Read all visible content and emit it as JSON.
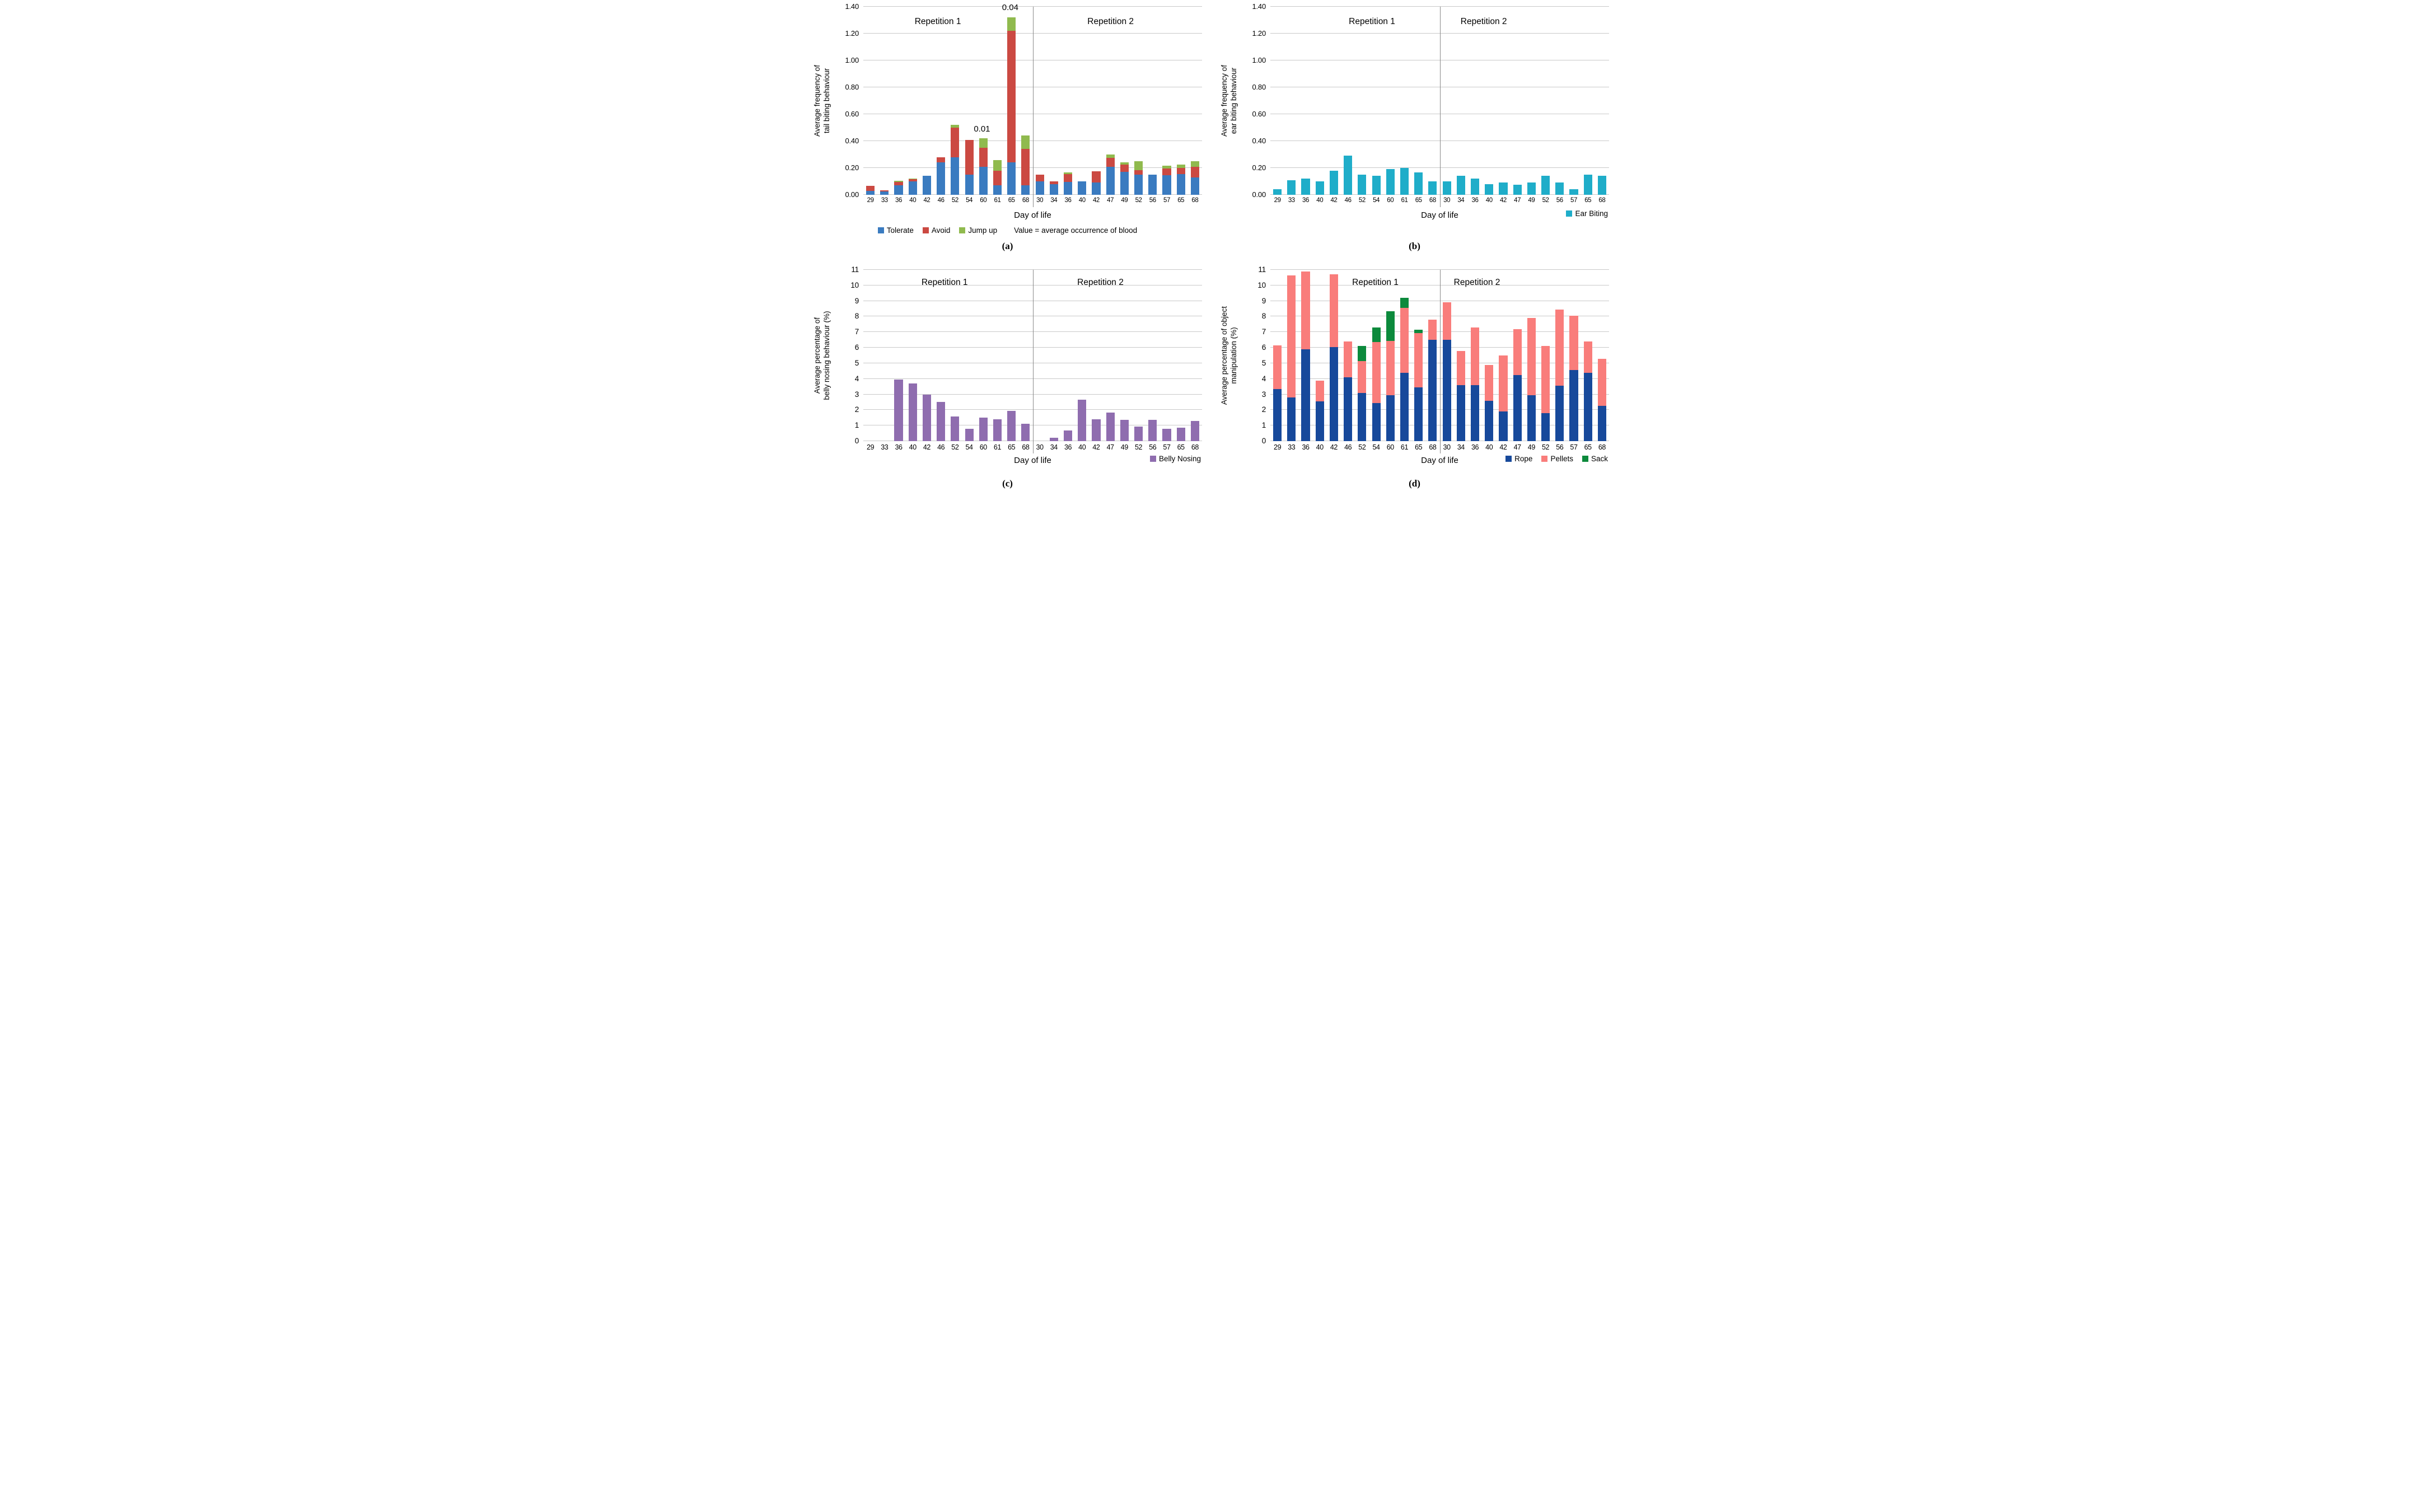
{
  "figure": {
    "x_axis_title": "Day of life",
    "day_categories": [
      "29",
      "33",
      "36",
      "40",
      "42",
      "46",
      "52",
      "54",
      "60",
      "61",
      "65",
      "68",
      "30",
      "34",
      "36",
      "40",
      "42",
      "47",
      "49",
      "52",
      "56",
      "57",
      "65",
      "68"
    ],
    "region_labels": [
      "Repetition 1",
      "Repetition 2"
    ]
  },
  "chart_data": [
    {
      "id": "a",
      "type": "bar",
      "stacked": true,
      "caption": "(a)",
      "ylabel": "Average frequency of\ntail biting behaviour",
      "xlabel": "Day of life",
      "ylim": [
        0,
        1.4
      ],
      "grid": true,
      "ytick_values": [
        0,
        0.2,
        0.4,
        0.6,
        0.8,
        1.0,
        1.2,
        1.4
      ],
      "ytick_labels": [
        "0.00",
        "0.20",
        "0.40",
        "0.60",
        "0.80",
        "1.00",
        "1.20",
        "1.40"
      ],
      "categories": [
        "29",
        "33",
        "36",
        "40",
        "42",
        "46",
        "52",
        "54",
        "60",
        "61",
        "65",
        "68",
        "30",
        "34",
        "36",
        "40",
        "42",
        "47",
        "49",
        "52",
        "56",
        "57",
        "65",
        "68"
      ],
      "region_labels": [
        "Repetition 1",
        "Repetition 2"
      ],
      "region_label_x": [
        22,
        73
      ],
      "legend_position": "below-center",
      "legend_note": "Value = average occurrence of blood",
      "annotations": [
        {
          "text": "0.01",
          "day": "60",
          "day_index": 8,
          "y": 0.455
        },
        {
          "text": "0.04",
          "day": "65",
          "day_index": 10,
          "y": 1.36
        }
      ],
      "series": [
        {
          "name": "Tolerate",
          "color": "#3A7BC0",
          "values": [
            0.03,
            0.025,
            0.07,
            0.1,
            0.14,
            0.24,
            0.28,
            0.15,
            0.21,
            0.07,
            0.24,
            0.07,
            0.1,
            0.08,
            0.095,
            0.1,
            0.09,
            0.21,
            0.17,
            0.15,
            0.15,
            0.145,
            0.155,
            0.13
          ]
        },
        {
          "name": "Avoid",
          "color": "#CB4942",
          "values": [
            0.035,
            0.01,
            0.025,
            0.015,
            0,
            0.04,
            0.22,
            0.26,
            0.14,
            0.11,
            0.98,
            0.27,
            0.05,
            0.02,
            0.06,
            0,
            0.085,
            0.065,
            0.055,
            0.035,
            0,
            0.05,
            0.045,
            0.08
          ]
        },
        {
          "name": "Jump up",
          "color": "#90BA4E",
          "values": [
            0,
            0,
            0.01,
            0.005,
            0,
            0,
            0.02,
            0,
            0.07,
            0.08,
            0.1,
            0.1,
            0,
            0,
            0.01,
            0,
            0,
            0.025,
            0.015,
            0.065,
            0,
            0.02,
            0.025,
            0.04
          ]
        }
      ]
    },
    {
      "id": "b",
      "type": "bar",
      "stacked": false,
      "caption": "(b)",
      "ylabel": "Average frequency of\near biting behaviour",
      "xlabel": "Day of life",
      "ylim": [
        0,
        1.4
      ],
      "grid": true,
      "ytick_values": [
        0,
        0.2,
        0.4,
        0.6,
        0.8,
        1.0,
        1.2,
        1.4
      ],
      "ytick_labels": [
        "0.00",
        "0.20",
        "0.40",
        "0.60",
        "0.80",
        "1.00",
        "1.20",
        "1.40"
      ],
      "categories": [
        "29",
        "33",
        "36",
        "40",
        "42",
        "46",
        "52",
        "54",
        "60",
        "61",
        "65",
        "68",
        "30",
        "34",
        "36",
        "40",
        "42",
        "47",
        "49",
        "52",
        "56",
        "57",
        "65",
        "68"
      ],
      "region_labels": [
        "Repetition 1",
        "Repetition 2"
      ],
      "region_label_x": [
        30,
        63
      ],
      "legend_position": "right",
      "annotations": [],
      "series": [
        {
          "name": "Ear Biting",
          "color": "#1FADC9",
          "values": [
            0.04,
            0.11,
            0.12,
            0.1,
            0.18,
            0.29,
            0.15,
            0.14,
            0.19,
            0.2,
            0.165,
            0.1,
            0.1,
            0.14,
            0.12,
            0.08,
            0.09,
            0.075,
            0.09,
            0.14,
            0.09,
            0.04,
            0.15,
            0.14
          ]
        }
      ]
    },
    {
      "id": "c",
      "type": "bar",
      "stacked": false,
      "caption": "(c)",
      "ylabel": "Average percentage of\nbelly nosing behaviour (%)",
      "xlabel": "Day of life",
      "ylim": [
        0,
        11
      ],
      "grid": true,
      "ytick_values": [
        0,
        1,
        2,
        3,
        4,
        5,
        6,
        7,
        8,
        9,
        10,
        11
      ],
      "ytick_labels": [
        "0",
        "1",
        "2",
        "3",
        "4",
        "5",
        "6",
        "7",
        "8",
        "9",
        "10",
        "11"
      ],
      "categories": [
        "29",
        "33",
        "36",
        "40",
        "42",
        "46",
        "52",
        "54",
        "60",
        "61",
        "65",
        "68",
        "30",
        "34",
        "36",
        "40",
        "42",
        "47",
        "49",
        "52",
        "56",
        "57",
        "65",
        "68"
      ],
      "region_labels": [
        "Repetition 1",
        "Repetition 2"
      ],
      "region_label_x": [
        24,
        70
      ],
      "legend_position": "right",
      "annotations": [],
      "series": [
        {
          "name": "Belly Nosing",
          "color": "#8F6DAF",
          "values": [
            0,
            0,
            3.95,
            3.7,
            3.0,
            2.5,
            1.6,
            0.8,
            1.5,
            1.4,
            1.95,
            1.1,
            0,
            0.2,
            0.7,
            2.65,
            1.4,
            1.85,
            1.35,
            0.95,
            1.35,
            0.8,
            0.85,
            1.3
          ]
        }
      ]
    },
    {
      "id": "d",
      "type": "bar",
      "stacked": true,
      "caption": "(d)",
      "ylabel": "Average percentage of object\nmanipulation (%)",
      "xlabel": "Day of life",
      "ylim": [
        0,
        11
      ],
      "grid": true,
      "ytick_values": [
        0,
        1,
        2,
        3,
        4,
        5,
        6,
        7,
        8,
        9,
        10,
        11
      ],
      "ytick_labels": [
        "0",
        "1",
        "2",
        "3",
        "4",
        "5",
        "6",
        "7",
        "8",
        "9",
        "10",
        "11"
      ],
      "categories": [
        "29",
        "33",
        "36",
        "40",
        "42",
        "46",
        "52",
        "54",
        "60",
        "61",
        "65",
        "68",
        "30",
        "34",
        "36",
        "40",
        "42",
        "47",
        "49",
        "52",
        "56",
        "57",
        "65",
        "68"
      ],
      "region_labels": [
        "Repetition 1",
        "Repetition 2"
      ],
      "region_label_x": [
        31,
        61
      ],
      "legend_position": "right",
      "annotations": [],
      "series": [
        {
          "name": "Rope",
          "color": "#17499B",
          "values": [
            3.35,
            2.8,
            5.9,
            2.55,
            6.05,
            4.1,
            3.1,
            2.45,
            2.95,
            4.4,
            3.45,
            6.5,
            6.5,
            3.6,
            3.6,
            2.6,
            1.9,
            4.25,
            2.95,
            1.8,
            3.55,
            4.55,
            4.4,
            2.25
          ]
        },
        {
          "name": "Pellets",
          "color": "#F97D7B",
          "values": [
            2.8,
            7.85,
            5.0,
            1.35,
            4.65,
            2.3,
            2.05,
            3.9,
            3.5,
            4.15,
            3.5,
            1.3,
            2.4,
            2.2,
            3.7,
            2.3,
            3.6,
            2.95,
            4.95,
            4.3,
            4.9,
            3.5,
            2.0,
            3.05
          ]
        },
        {
          "name": "Sack",
          "color": "#0C8A3C",
          "values": [
            0,
            0,
            0,
            0,
            0,
            0,
            0.95,
            0.95,
            1.9,
            0.65,
            0.2,
            0,
            0,
            0,
            0,
            0,
            0,
            0,
            0,
            0,
            0,
            0,
            0,
            0
          ]
        }
      ]
    }
  ]
}
